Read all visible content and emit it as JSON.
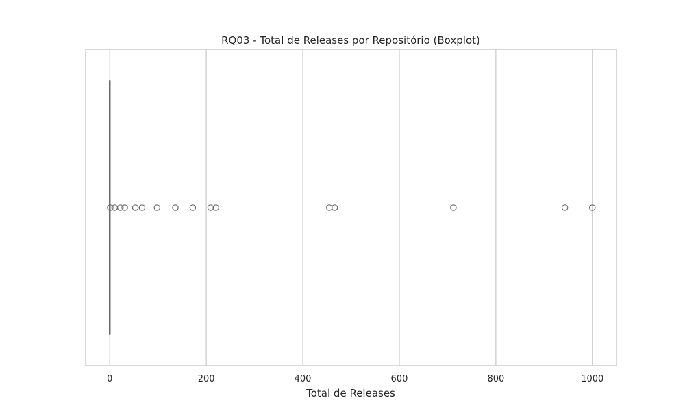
{
  "chart_data": {
    "type": "boxplot",
    "orientation": "horizontal",
    "title": "RQ03 - Total de Releases por Repositório (Boxplot)",
    "xlabel": "Total de Releases",
    "ylabel": "",
    "xlim": [
      -50,
      1050
    ],
    "xticks": [
      0,
      200,
      400,
      600,
      800,
      1000
    ],
    "xtick_labels": [
      "0",
      "200",
      "400",
      "600",
      "800",
      "1000"
    ],
    "grid": "vertical",
    "box": {
      "min": 0,
      "q1": 0,
      "median": 0,
      "q3": 0,
      "max": 0
    },
    "outliers": [
      1,
      10,
      22,
      31,
      53,
      67,
      98,
      136,
      172,
      209,
      220,
      455,
      466,
      712,
      943,
      1000
    ],
    "colors": {
      "box_line": "#6b6b6b",
      "grid": "#cccccc",
      "frame": "#cccccc",
      "text": "#262626"
    }
  }
}
